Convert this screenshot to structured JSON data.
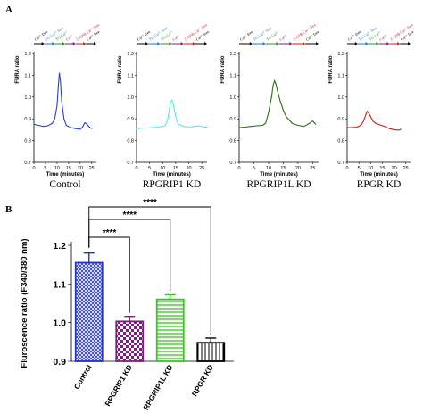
{
  "panel_labels": {
    "a": "A",
    "b": "B"
  },
  "colors": {
    "control": "#2a3fd0",
    "rpgrip1": "#55e8ec",
    "rpgrip1l": "#2f6b12",
    "rpgr": "#d81a1a",
    "bar_control": "#2233cc",
    "bar_rpgrip1": "#7a1f7a",
    "bar_rpgrip1l": "#35c81c",
    "bar_rpgr": "#000000",
    "band_colors": [
      "#000000",
      "#1a7bd1",
      "#2e8b2e",
      "#7a1f7a",
      "#d11a1a",
      "#000000"
    ]
  },
  "band_labels": [
    "Ca²⁺ free",
    "TG Ca²⁺ free",
    "TG Ca²⁺",
    "Ca²⁺",
    "2-APB Ca²⁺ free",
    "Ca²⁺ free"
  ],
  "chart_data": [
    {
      "type": "line",
      "name": "Control",
      "caption": "Control",
      "xlabel": "Time (minutes)",
      "ylabel": "FURA ratio",
      "xlim": [
        0,
        27
      ],
      "ylim": [
        0.7,
        1.2
      ],
      "xticks": [
        0,
        5,
        10,
        15,
        20,
        25
      ],
      "yticks": [
        0.7,
        0.8,
        0.9,
        1.0,
        1.1,
        1.2
      ],
      "x": [
        0,
        2,
        4,
        6,
        8,
        9,
        10,
        10.5,
        11,
        11.5,
        12,
        13,
        14,
        16,
        18,
        20,
        21,
        22,
        23,
        24,
        25
      ],
      "y": [
        0.875,
        0.87,
        0.865,
        0.868,
        0.88,
        0.9,
        0.96,
        1.04,
        1.11,
        1.07,
        0.98,
        0.9,
        0.87,
        0.86,
        0.855,
        0.852,
        0.862,
        0.882,
        0.875,
        0.862,
        0.855
      ]
    },
    {
      "type": "line",
      "name": "RPGRIP1 KD",
      "caption": "RPGRIP1 KD",
      "xlabel": "Time (minutes)",
      "ylabel": "FURA ratio",
      "xlim": [
        0,
        27
      ],
      "ylim": [
        0.7,
        1.2
      ],
      "xticks": [
        0,
        5,
        10,
        15,
        20,
        25
      ],
      "yticks": [
        0.7,
        0.8,
        0.9,
        1.0,
        1.1,
        1.2
      ],
      "x": [
        0,
        2,
        4,
        6,
        8,
        10,
        11,
        12,
        12.5,
        13,
        13.5,
        14,
        15,
        16,
        18,
        20,
        22,
        24,
        26,
        27
      ],
      "y": [
        0.855,
        0.857,
        0.858,
        0.86,
        0.862,
        0.865,
        0.87,
        0.9,
        0.94,
        0.975,
        0.985,
        0.97,
        0.91,
        0.875,
        0.865,
        0.862,
        0.865,
        0.868,
        0.862,
        0.862
      ]
    },
    {
      "type": "line",
      "name": "RPGRIP1L KD",
      "caption": "RPGRIP1L KD",
      "xlabel": "Time (minutes)",
      "ylabel": "FURA ratio",
      "xlim": [
        0,
        27
      ],
      "ylim": [
        0.7,
        1.2
      ],
      "xticks": [
        0,
        5,
        10,
        15,
        20,
        25
      ],
      "yticks": [
        0.7,
        0.8,
        0.9,
        1.0,
        1.1,
        1.2
      ],
      "x": [
        0,
        2,
        4,
        6,
        8,
        9,
        10,
        11,
        11.5,
        12,
        12.5,
        13,
        14,
        15,
        16,
        18,
        20,
        22,
        24,
        25,
        26
      ],
      "y": [
        0.86,
        0.862,
        0.865,
        0.868,
        0.87,
        0.88,
        0.93,
        1.0,
        1.05,
        1.075,
        1.06,
        1.03,
        0.98,
        0.94,
        0.91,
        0.88,
        0.87,
        0.865,
        0.88,
        0.89,
        0.875
      ]
    },
    {
      "type": "line",
      "name": "RPGR KD",
      "caption": "RPGR KD",
      "xlabel": "Time (minutes)",
      "ylabel": "FURA ratio",
      "xlim": [
        0,
        27
      ],
      "ylim": [
        0.7,
        1.2
      ],
      "xticks": [
        0,
        5,
        10,
        15,
        20,
        25
      ],
      "yticks": [
        0.7,
        0.8,
        0.9,
        1.0,
        1.1,
        1.2
      ],
      "x": [
        0,
        2,
        4,
        5,
        6,
        7,
        8,
        8.5,
        9,
        10,
        11,
        12,
        14,
        16,
        18,
        20,
        22,
        23
      ],
      "y": [
        0.86,
        0.86,
        0.862,
        0.865,
        0.872,
        0.89,
        0.92,
        0.935,
        0.93,
        0.91,
        0.89,
        0.88,
        0.872,
        0.865,
        0.855,
        0.85,
        0.848,
        0.852
      ]
    },
    {
      "type": "bar",
      "categories": [
        "Control",
        "RPGRIP1 KD",
        "RPGRIP1L KD",
        "RPGR KD"
      ],
      "values": [
        1.155,
        1.003,
        1.06,
        0.948
      ],
      "errors": [
        0.025,
        0.013,
        0.012,
        0.012
      ],
      "ylabel": "Fluroscence ratio (F340/380 nm)",
      "ylim": [
        0.9,
        1.2
      ],
      "yticks": [
        0.9,
        1.0,
        1.1,
        1.2
      ],
      "significance": [
        {
          "from": "Control",
          "to": "RPGRIP1 KD",
          "label": "****"
        },
        {
          "from": "Control",
          "to": "RPGRIP1L KD",
          "label": "****"
        },
        {
          "from": "Control",
          "to": "RPGR KD",
          "label": "****"
        }
      ]
    }
  ]
}
